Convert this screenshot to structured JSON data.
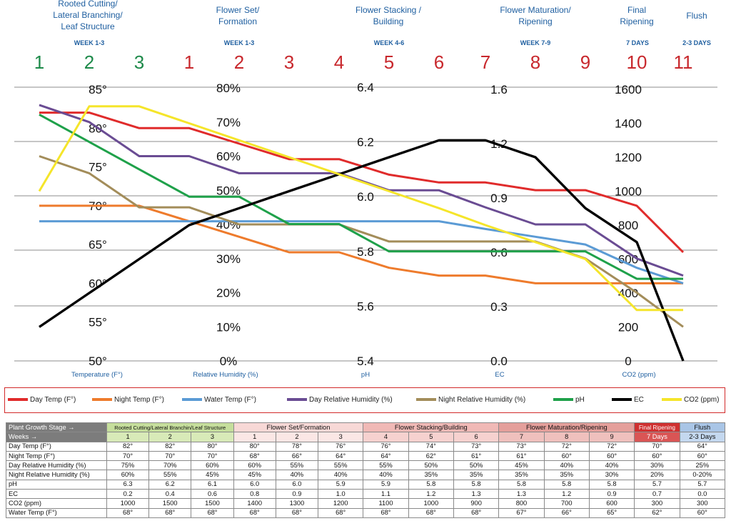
{
  "stages": [
    {
      "label": "Rooted Cutting/ Lateral Branching/ Leaf Structure",
      "weeks": "WEEK 1-3"
    },
    {
      "label": "Flower Set/ Formation",
      "weeks": "WEEK 1-3"
    },
    {
      "label": "Flower Stacking / Building",
      "weeks": "WEEK 4-6"
    },
    {
      "label": "Flower Maturation/ Ripening",
      "weeks": "WEEK 7-9"
    },
    {
      "label": "Final Ripening",
      "weeks": "7 DAYS"
    },
    {
      "label": "Flush",
      "weeks": "2-3 DAYS"
    }
  ],
  "week_numbers": [
    {
      "n": "1",
      "color": "#1e8a4a"
    },
    {
      "n": "2",
      "color": "#1e8a4a"
    },
    {
      "n": "3",
      "color": "#1e8a4a"
    },
    {
      "n": "1",
      "color": "#c8282d"
    },
    {
      "n": "2",
      "color": "#c8282d"
    },
    {
      "n": "3",
      "color": "#c8282d"
    },
    {
      "n": "4",
      "color": "#c8282d"
    },
    {
      "n": "5",
      "color": "#c8282d"
    },
    {
      "n": "6",
      "color": "#c8282d"
    },
    {
      "n": "7",
      "color": "#c8282d"
    },
    {
      "n": "8",
      "color": "#c8282d"
    },
    {
      "n": "9",
      "color": "#c8282d"
    },
    {
      "n": "10",
      "color": "#c8282d"
    },
    {
      "n": "11",
      "color": "#c8282d"
    }
  ],
  "chart_data": {
    "type": "line",
    "title": "",
    "x": [
      "1",
      "2",
      "3",
      "1",
      "2",
      "3",
      "4",
      "5",
      "6",
      "7",
      "8",
      "9",
      "10",
      "11"
    ],
    "axes": [
      {
        "name": "temperature",
        "title": "Temperature (F°)",
        "ticks": [
          "85°",
          "80°",
          "75°",
          "70°",
          "65°",
          "60°",
          "55°",
          "50°"
        ],
        "range": [
          50,
          85
        ]
      },
      {
        "name": "humidity",
        "title": "Relative Humidity (%)",
        "ticks": [
          "80%",
          "70%",
          "60%",
          "50%",
          "40%",
          "30%",
          "20%",
          "10%",
          "0%"
        ],
        "range": [
          0,
          80
        ]
      },
      {
        "name": "ph",
        "title": "pH",
        "ticks": [
          "6.4",
          "6.2",
          "6.0",
          "5.8",
          "5.6",
          "5.4"
        ],
        "range": [
          5.4,
          6.4
        ]
      },
      {
        "name": "ec",
        "title": "EC",
        "ticks": [
          "1.6",
          "1.2",
          "0.9",
          "0.6",
          "0.3",
          "0.0"
        ],
        "range": [
          0.0,
          1.6
        ]
      },
      {
        "name": "co2",
        "title": "CO2 (ppm)",
        "ticks": [
          "1600",
          "1400",
          "1200",
          "1000",
          "800",
          "600",
          "400",
          "200",
          "0"
        ],
        "range": [
          0,
          1600
        ]
      }
    ],
    "series": [
      {
        "name": "Day Temp (F°)",
        "color": "#e02b2b",
        "axis": "temperature",
        "values": [
          82,
          82,
          80,
          80,
          78,
          76,
          76,
          74,
          73,
          73,
          72,
          72,
          70,
          64
        ]
      },
      {
        "name": "Night Temp (F°)",
        "color": "#ee7b2c",
        "axis": "temperature",
        "values": [
          70,
          70,
          70,
          68,
          66,
          64,
          64,
          62,
          61,
          61,
          60,
          60,
          60,
          60
        ]
      },
      {
        "name": "Water Temp (F°)",
        "color": "#5b9bd5",
        "axis": "temperature",
        "values": [
          68,
          68,
          68,
          68,
          68,
          68,
          68,
          68,
          68,
          67,
          66,
          65,
          62,
          60
        ]
      },
      {
        "name": "Day Relative Humidity (%)",
        "color": "#6a4c93",
        "axis": "humidity",
        "values": [
          75,
          70,
          60,
          60,
          55,
          55,
          55,
          50,
          50,
          45,
          40,
          40,
          30,
          25
        ]
      },
      {
        "name": "Night Relative Humidity (%)",
        "color": "#a38d5a",
        "axis": "humidity",
        "values": [
          60,
          55,
          45,
          45,
          40,
          40,
          40,
          35,
          35,
          35,
          35,
          30,
          20,
          10
        ]
      },
      {
        "name": "pH",
        "color": "#1fa14a",
        "axis": "ph",
        "values": [
          6.3,
          6.2,
          6.1,
          6.0,
          6.0,
          5.9,
          5.9,
          5.8,
          5.8,
          5.8,
          5.8,
          5.8,
          5.7,
          5.7
        ]
      },
      {
        "name": "EC",
        "color": "#000000",
        "axis": "ec",
        "values": [
          0.2,
          0.4,
          0.6,
          0.8,
          0.9,
          1.0,
          1.1,
          1.2,
          1.3,
          1.3,
          1.2,
          0.9,
          0.7,
          0.0
        ]
      },
      {
        "name": "CO2 (ppm)",
        "color": "#f5e52a",
        "axis": "co2",
        "values": [
          1000,
          1500,
          1500,
          1400,
          1300,
          1200,
          1100,
          1000,
          900,
          800,
          700,
          600,
          300,
          300
        ]
      }
    ]
  },
  "table": {
    "stage_header": "Plant Growth Stage →",
    "weeks_header": "Weeks →",
    "stage_names": [
      "Rooted Cutting/Lateral Branchin/Leaf Structure",
      "Flower Set/Formation",
      "Flower Stacking/Building",
      "Flower Maturation/Ripening",
      "Final Ripening",
      "Flush"
    ],
    "weeks": [
      "1",
      "2",
      "3",
      "1",
      "2",
      "3",
      "4",
      "5",
      "6",
      "7",
      "8",
      "9",
      "7 Days",
      "2-3 Days"
    ],
    "rows": [
      {
        "label": "Day Temp (F°)",
        "values": [
          "82°",
          "82°",
          "80°",
          "80°",
          "78°",
          "76°",
          "76°",
          "74°",
          "73°",
          "73°",
          "72°",
          "72°",
          "70°",
          "64°"
        ]
      },
      {
        "label": "Night Temp (F°)",
        "values": [
          "70°",
          "70°",
          "70°",
          "68°",
          "66°",
          "64°",
          "64°",
          "62°",
          "61°",
          "61°",
          "60°",
          "60°",
          "60°",
          "60°"
        ]
      },
      {
        "label": "Day Relative Humidity (%)",
        "values": [
          "75%",
          "70%",
          "60%",
          "60%",
          "55%",
          "55%",
          "55%",
          "50%",
          "50%",
          "45%",
          "40%",
          "40%",
          "30%",
          "25%"
        ]
      },
      {
        "label": "Night Relative Humidity (%)",
        "values": [
          "60%",
          "55%",
          "45%",
          "45%",
          "40%",
          "40%",
          "40%",
          "35%",
          "35%",
          "35%",
          "35%",
          "30%",
          "20%",
          "0-20%"
        ]
      },
      {
        "label": "pH",
        "values": [
          "6.3",
          "6.2",
          "6.1",
          "6.0",
          "6.0",
          "5.9",
          "5.9",
          "5.8",
          "5.8",
          "5.8",
          "5.8",
          "5.8",
          "5.7",
          "5.7"
        ]
      },
      {
        "label": "EC",
        "values": [
          "0.2",
          "0.4",
          "0.6",
          "0.8",
          "0.9",
          "1.0",
          "1.1",
          "1.2",
          "1.3",
          "1.3",
          "1.2",
          "0.9",
          "0.7",
          "0.0"
        ]
      },
      {
        "label": "CO2 (ppm)",
        "values": [
          "1000",
          "1500",
          "1500",
          "1400",
          "1300",
          "1200",
          "1100",
          "1000",
          "900",
          "800",
          "700",
          "600",
          "300",
          "300"
        ]
      },
      {
        "label": "Water Temp (F°)",
        "values": [
          "68°",
          "68°",
          "68°",
          "68°",
          "68°",
          "68°",
          "68°",
          "68°",
          "68°",
          "67°",
          "66°",
          "65°",
          "62°",
          "60°"
        ]
      }
    ]
  }
}
